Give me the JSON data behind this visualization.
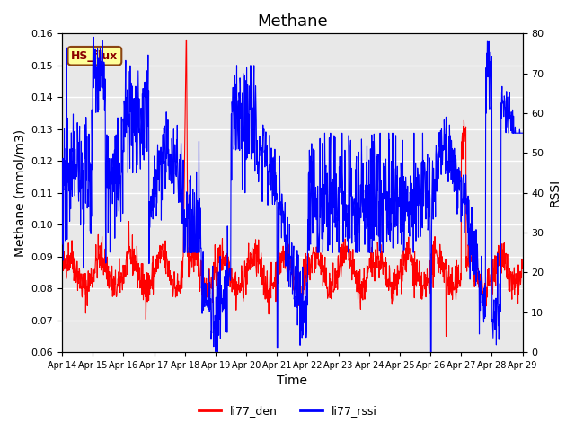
{
  "title": "Methane",
  "xlabel": "Time",
  "ylabel_left": "Methane (mmol/m3)",
  "ylabel_right": "RSSI",
  "ylim_left": [
    0.06,
    0.16
  ],
  "ylim_right": [
    0,
    80
  ],
  "yticks_left": [
    0.06,
    0.07,
    0.08,
    0.09,
    0.1,
    0.11,
    0.12,
    0.13,
    0.14,
    0.15,
    0.16
  ],
  "yticks_right": [
    0,
    10,
    20,
    30,
    40,
    50,
    60,
    70,
    80
  ],
  "xtick_labels": [
    "Apr 14",
    "Apr 15",
    "Apr 16",
    "Apr 17",
    "Apr 18",
    "Apr 19",
    "Apr 20",
    "Apr 21",
    "Apr 22",
    "Apr 23",
    "Apr 24",
    "Apr 25",
    "Apr 26",
    "Apr 27",
    "Apr 28",
    "Apr 29"
  ],
  "legend_labels": [
    "li77_den",
    "li77_rssi"
  ],
  "legend_colors": [
    "#FF0000",
    "#0000FF"
  ],
  "box_label": "HS_flux",
  "box_facecolor": "#FFFF99",
  "box_edgecolor": "#8B4513",
  "background_color": "#E8E8E8",
  "grid_color": "#FFFFFF",
  "line_color_red": "#FF0000",
  "line_color_blue": "#0000FF",
  "title_fontsize": 13,
  "axis_fontsize": 10,
  "tick_fontsize": 8
}
